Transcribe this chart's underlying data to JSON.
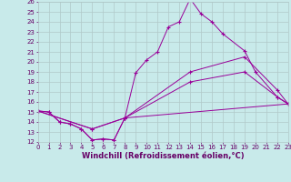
{
  "xlabel": "Windchill (Refroidissement éolien,°C)",
  "xlim": [
    0,
    23
  ],
  "ylim": [
    12,
    26
  ],
  "xticks": [
    0,
    1,
    2,
    3,
    4,
    5,
    6,
    7,
    8,
    9,
    10,
    11,
    12,
    13,
    14,
    15,
    16,
    17,
    18,
    19,
    20,
    21,
    22,
    23
  ],
  "yticks": [
    12,
    13,
    14,
    15,
    16,
    17,
    18,
    19,
    20,
    21,
    22,
    23,
    24,
    25,
    26
  ],
  "background_color": "#c8eaea",
  "grid_color": "#b0c8c8",
  "line_color": "#990099",
  "font_color": "#660066",
  "tick_fontsize": 5.0,
  "xlabel_fontsize": 6.0,
  "series": [
    {
      "x": [
        0,
        1,
        2,
        3,
        4,
        5,
        6,
        7,
        8,
        9,
        10,
        11,
        12,
        13,
        14,
        15,
        16,
        17,
        19,
        20,
        22,
        23
      ],
      "y": [
        15.1,
        15.0,
        14.0,
        13.8,
        13.3,
        12.2,
        12.3,
        12.2,
        14.4,
        18.9,
        20.2,
        21.0,
        23.5,
        24.0,
        26.3,
        24.8,
        24.0,
        22.8,
        21.1,
        19.0,
        16.5,
        15.8
      ]
    },
    {
      "x": [
        0,
        1,
        2,
        3,
        4,
        5,
        6,
        7,
        8,
        23
      ],
      "y": [
        15.1,
        15.0,
        14.0,
        13.8,
        13.3,
        12.2,
        12.3,
        12.2,
        14.4,
        15.8
      ]
    },
    {
      "x": [
        0,
        5,
        8,
        14,
        19,
        22,
        23
      ],
      "y": [
        15.1,
        13.3,
        14.4,
        18.0,
        19.0,
        16.5,
        15.8
      ]
    },
    {
      "x": [
        0,
        5,
        8,
        14,
        19,
        22,
        23
      ],
      "y": [
        15.1,
        13.3,
        14.4,
        19.0,
        20.5,
        17.2,
        15.8
      ]
    }
  ]
}
